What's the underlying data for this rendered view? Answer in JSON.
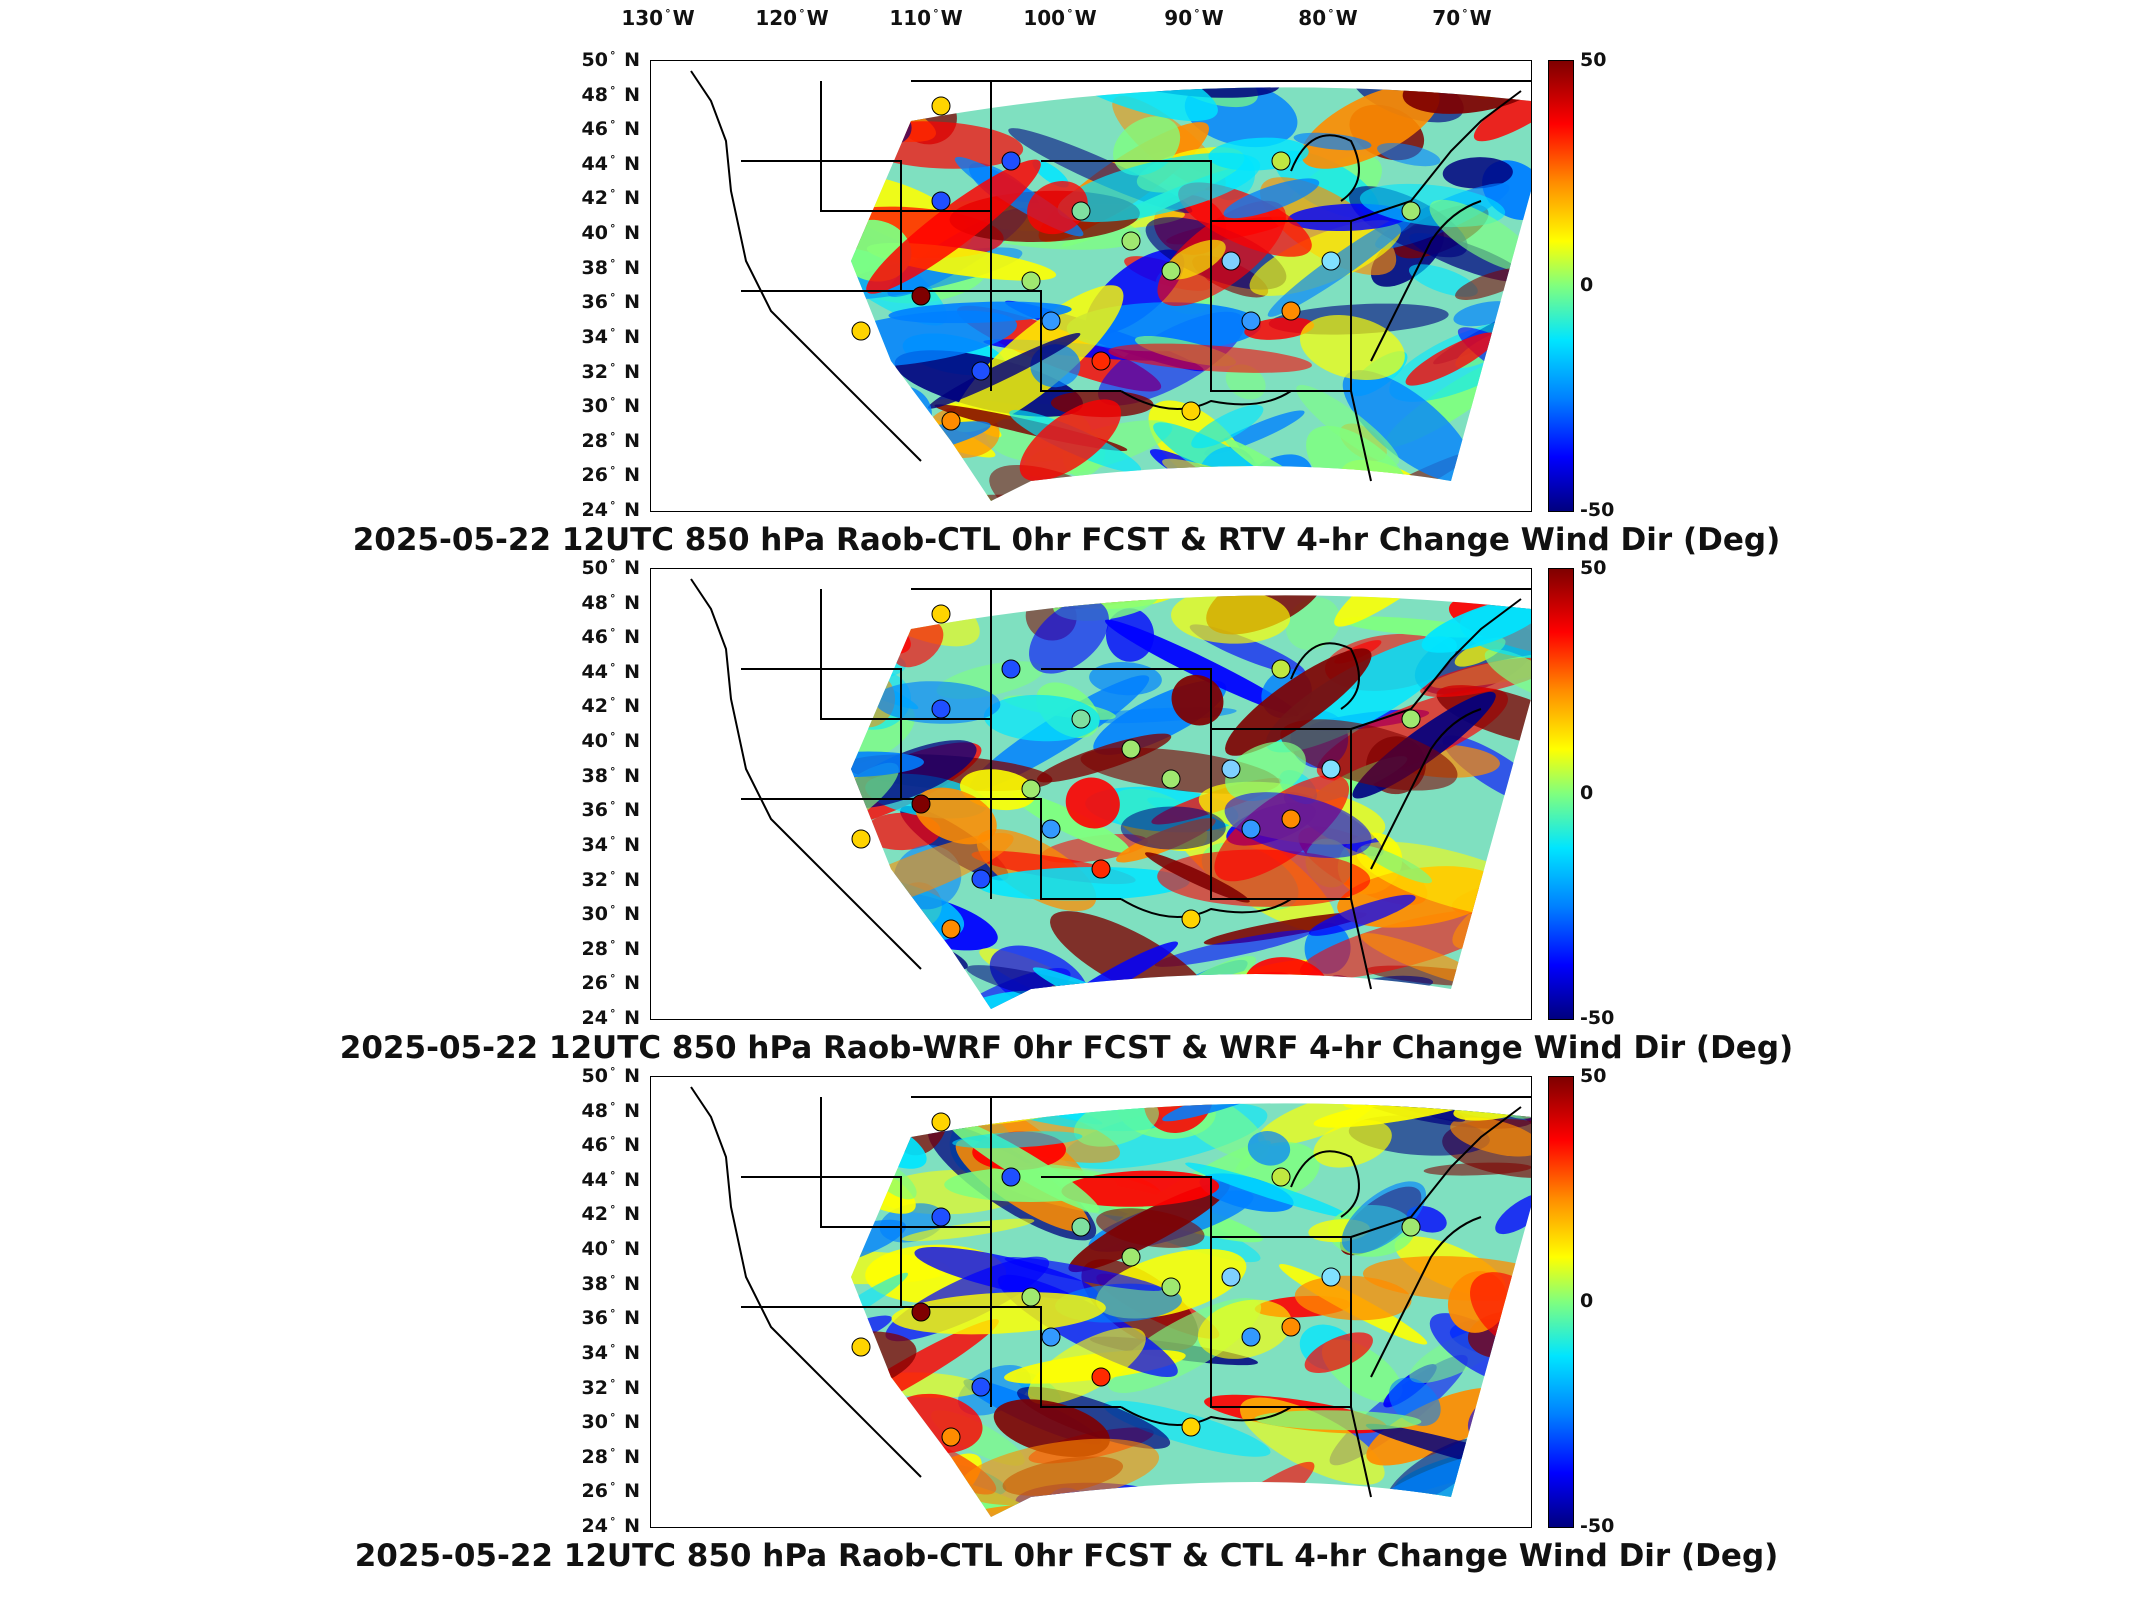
{
  "longitude_labels": [
    {
      "value": "130",
      "hemi": "W"
    },
    {
      "value": "120",
      "hemi": "W"
    },
    {
      "value": "110",
      "hemi": "W"
    },
    {
      "value": "100",
      "hemi": "W"
    },
    {
      "value": "90",
      "hemi": "W"
    },
    {
      "value": "80",
      "hemi": "W"
    },
    {
      "value": "70",
      "hemi": "W"
    }
  ],
  "latitude_labels": [
    {
      "value": "50",
      "hemi": "N"
    },
    {
      "value": "48",
      "hemi": "N"
    },
    {
      "value": "46",
      "hemi": "N"
    },
    {
      "value": "44",
      "hemi": "N"
    },
    {
      "value": "42",
      "hemi": "N"
    },
    {
      "value": "40",
      "hemi": "N"
    },
    {
      "value": "38",
      "hemi": "N"
    },
    {
      "value": "36",
      "hemi": "N"
    },
    {
      "value": "34",
      "hemi": "N"
    },
    {
      "value": "32",
      "hemi": "N"
    },
    {
      "value": "30",
      "hemi": "N"
    },
    {
      "value": "28",
      "hemi": "N"
    },
    {
      "value": "26",
      "hemi": "N"
    },
    {
      "value": "24",
      "hemi": "N"
    }
  ],
  "colorbar": {
    "max": "50",
    "mid": "0",
    "min": "-50",
    "colors": [
      "#7f0000",
      "#ff0000",
      "#ff8c00",
      "#ffff00",
      "#7fff7f",
      "#00e5ff",
      "#0080ff",
      "#0000ff",
      "#00007f"
    ]
  },
  "panels": [
    {
      "title": "2025-05-22 12UTC 850 hPa Raob-CTL 0hr FCST & RTV 4-hr Change Wind Dir (Deg)"
    },
    {
      "title": "2025-05-22 12UTC 850 hPa Raob-WRF 0hr FCST & WRF 4-hr Change Wind Dir (Deg)"
    },
    {
      "title": "2025-05-22 12UTC 850 hPa Raob-CTL 0hr FCST & CTL 4-hr Change Wind Dir (Deg)"
    }
  ]
}
